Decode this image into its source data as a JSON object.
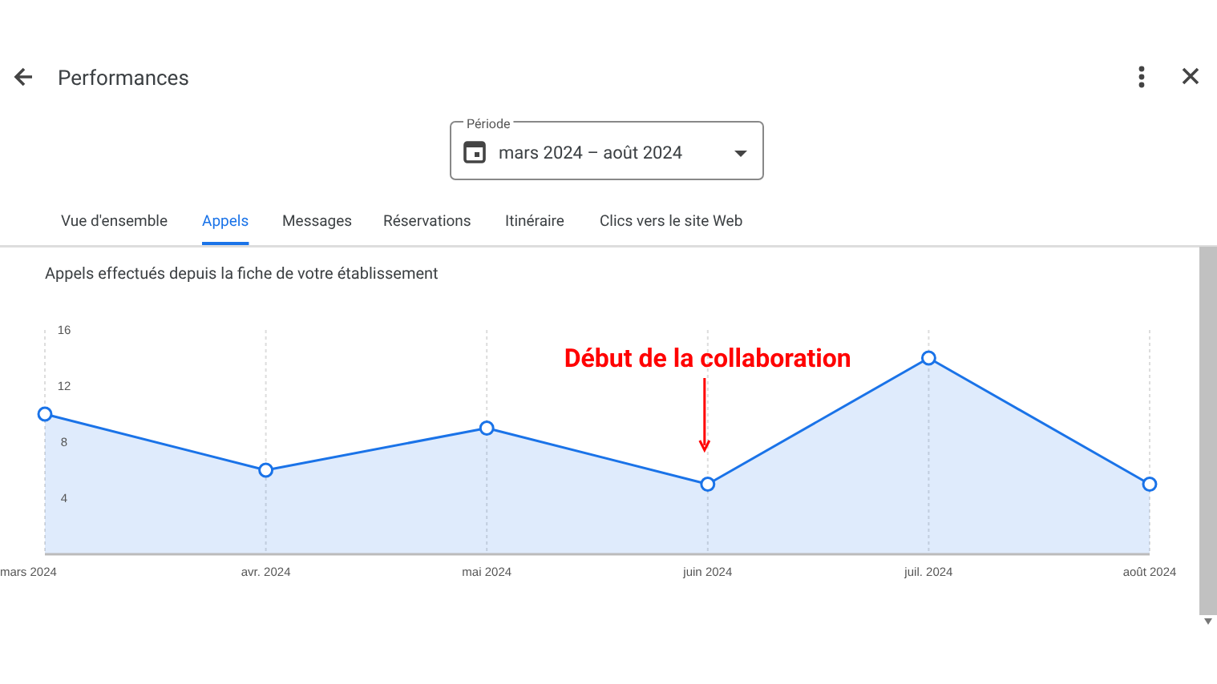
{
  "chart_data": {
    "type": "area",
    "title": "Appels effectués depuis la fiche de votre établissement",
    "categories": [
      "mars 2024",
      "avr. 2024",
      "mai 2024",
      "juin 2024",
      "juil. 2024",
      "août 2024"
    ],
    "series": [
      {
        "color": "#1a73e8",
        "values": [
          10,
          6,
          9,
          5,
          14,
          5
        ]
      }
    ],
    "ylim": [
      0,
      16
    ],
    "yticks": [
      {
        "value": 4,
        "label": "4"
      },
      {
        "value": 8,
        "label": "8"
      },
      {
        "value": 12,
        "label": "12"
      },
      {
        "value": 16,
        "label": "16"
      }
    ],
    "grid": "x",
    "marker": "circle",
    "annotations": [
      "Début de la collaboration",
      "Performances",
      "Période",
      "mars 2024 – août 2024",
      "Vue d'ensemble",
      "Appels",
      "Messages",
      "Réservations",
      "Itinéraire",
      "Clics vers le site Web"
    ]
  }
}
